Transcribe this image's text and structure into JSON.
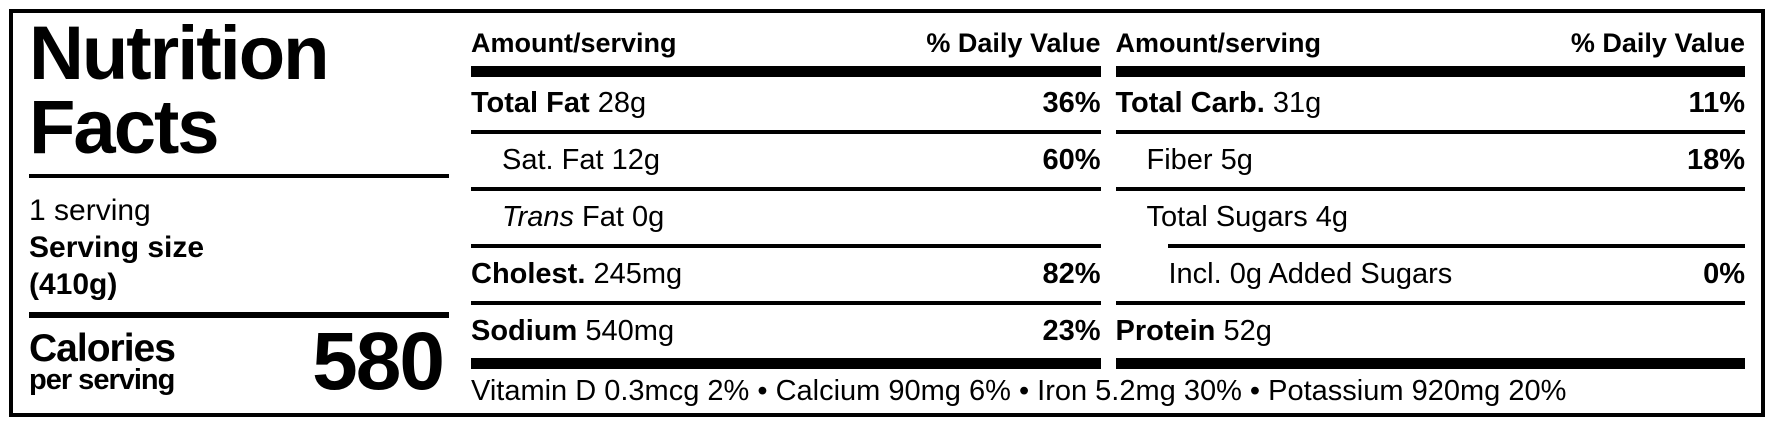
{
  "label": {
    "title_line1": "Nutrition",
    "title_line2": "Facts",
    "servings": "1 serving",
    "serving_size_label": "Serving size",
    "serving_size_value": "(410g)",
    "calories_label": "Calories",
    "calories_sublabel": "per serving",
    "calories_value": "580"
  },
  "nutrient_columns": [
    {
      "header": {
        "amount": "Amount/serving",
        "daily_value": "% Daily Value"
      },
      "rows": [
        {
          "label": "Total Fat",
          "label_style": "bold",
          "amount": "28g",
          "dv": "36%",
          "indent": 0,
          "rule_below": "thin"
        },
        {
          "label": "Sat. Fat",
          "label_style": "regular",
          "amount": "12g",
          "dv": "60%",
          "indent": 1,
          "rule_below": "thin"
        },
        {
          "label": "Trans",
          "label_style": "italic",
          "amount": "Fat 0g",
          "dv": "",
          "indent": 1,
          "rule_below": "thin"
        },
        {
          "label": "Cholest.",
          "label_style": "bold",
          "amount": "245mg",
          "dv": "82%",
          "indent": 0,
          "rule_below": "thin"
        },
        {
          "label": "Sodium",
          "label_style": "bold",
          "amount": "540mg",
          "dv": "23%",
          "indent": 0,
          "rule_below": "thick"
        }
      ]
    },
    {
      "header": {
        "amount": "Amount/serving",
        "daily_value": "% Daily Value"
      },
      "rows": [
        {
          "label": "Total Carb.",
          "label_style": "bold",
          "amount": "31g",
          "dv": "11%",
          "indent": 0,
          "rule_below": "thin"
        },
        {
          "label": "Fiber",
          "label_style": "regular",
          "amount": "5g",
          "dv": "18%",
          "indent": 1,
          "rule_below": "thin"
        },
        {
          "label": "Total Sugars",
          "label_style": "regular",
          "amount": "4g",
          "dv": "",
          "indent": 1,
          "rule_below": "thin-indented"
        },
        {
          "label": "Incl. 0g Added Sugars",
          "label_style": "regular",
          "amount": "",
          "dv": "0%",
          "indent": 2,
          "rule_below": "thin"
        },
        {
          "label": "Protein",
          "label_style": "bold",
          "amount": "52g",
          "dv": "",
          "indent": 0,
          "rule_below": "thick"
        }
      ]
    }
  ],
  "micronutrients": {
    "separator": " • ",
    "items": [
      {
        "name": "Vitamin D",
        "amount": "0.3mcg",
        "dv": "2%"
      },
      {
        "name": "Calcium",
        "amount": "90mg",
        "dv": "6%"
      },
      {
        "name": "Iron",
        "amount": "5.2mg",
        "dv": "30%"
      },
      {
        "name": "Potassium",
        "amount": "920mg",
        "dv": "20%"
      }
    ]
  }
}
